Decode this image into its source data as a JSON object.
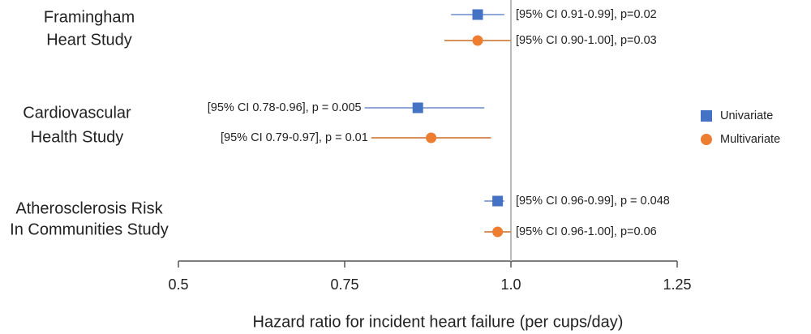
{
  "chart_data": {
    "type": "forest",
    "xlabel": "Hazard ratio for incident heart failure (per cups/day)",
    "categories": [
      [
        "Framingham",
        "Heart Study"
      ],
      [
        "Cardiovascular",
        "Health Study"
      ],
      [
        "Atherosclerosis Risk",
        "In Communities Study"
      ]
    ],
    "series": [
      {
        "name": "Univariate",
        "color": "#4472c4",
        "line_color": "#8fa8d8",
        "marker": "square",
        "values": [
          0.95,
          0.86,
          0.98
        ],
        "lower": [
          0.91,
          0.78,
          0.96
        ],
        "upper": [
          0.99,
          0.96,
          0.99
        ],
        "value_labels": [
          "[95% CI 0.91-0.99], p=0.02",
          "[95% CI 0.78-0.96], p = 0.005",
          "[95% CI 0.96-0.99], p = 0.048"
        ]
      },
      {
        "name": "Multivariate",
        "color": "#ed7d31",
        "line_color": "#d9915c",
        "marker": "circle",
        "values": [
          0.95,
          0.88,
          0.98
        ],
        "lower": [
          0.9,
          0.79,
          0.96
        ],
        "upper": [
          1.0,
          0.97,
          1.0
        ],
        "value_labels": [
          "[95% CI 0.90-1.00], p=0.03",
          "[95% CI 0.79-0.97], p = 0.01",
          "[95% CI 0.96-1.00], p=0.06"
        ]
      }
    ],
    "xlim": [
      0.5,
      1.25
    ],
    "xticks": [
      0.5,
      0.75,
      {
        "value": 1,
        "label": "1.0"
      },
      1.25
    ],
    "reference_line": 1,
    "legend": "right"
  }
}
